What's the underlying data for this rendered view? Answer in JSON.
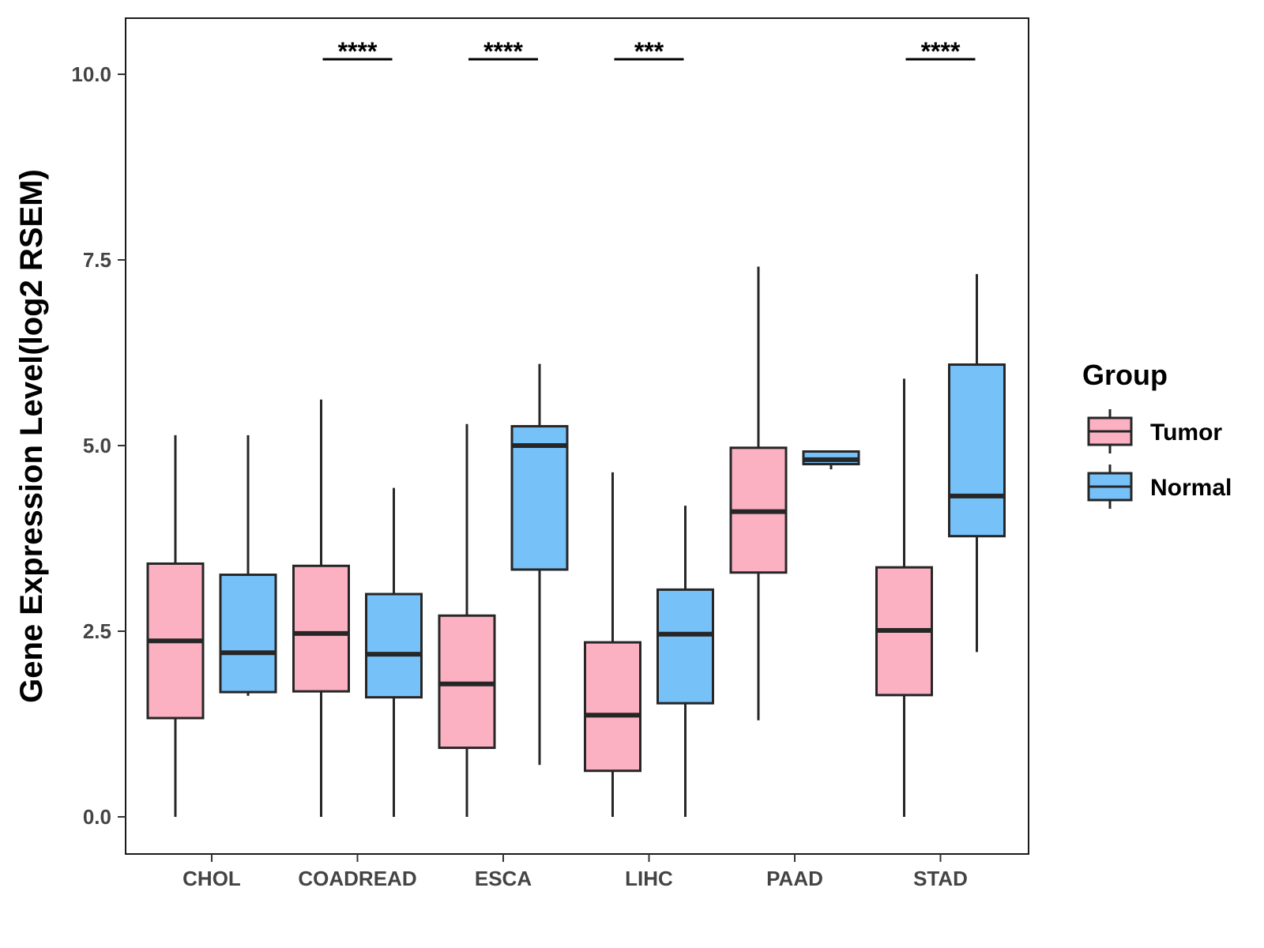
{
  "chart_data": {
    "type": "boxplot",
    "title": "",
    "xlabel": "",
    "ylabel": "Gene Expression Level(log2 RSEM)",
    "ylim": [
      -0.5,
      10.8
    ],
    "yticks": [
      0.0,
      2.5,
      5.0,
      7.5,
      10.0
    ],
    "ytick_labels": [
      "0.0",
      "2.5",
      "5.0",
      "7.5",
      "10.0"
    ],
    "grid": false,
    "legend": {
      "title": "Group",
      "position": "right",
      "entries": [
        {
          "name": "Tumor",
          "color": "#FBB1C2"
        },
        {
          "name": "Normal",
          "color": "#76C1F8"
        }
      ]
    },
    "categories": [
      "CHOL",
      "COADREAD",
      "ESCA",
      "LIHC",
      "PAAD",
      "STAD"
    ],
    "series": [
      {
        "name": "Tumor",
        "color": "#FBB1C2",
        "boxes": [
          {
            "whisker_low": 0.0,
            "q1": 1.33,
            "median": 2.37,
            "q3": 3.41,
            "whisker_high": 5.14
          },
          {
            "whisker_low": 0.0,
            "q1": 1.69,
            "median": 2.47,
            "q3": 3.38,
            "whisker_high": 5.62
          },
          {
            "whisker_low": 0.0,
            "q1": 0.93,
            "median": 1.79,
            "q3": 2.71,
            "whisker_high": 5.29
          },
          {
            "whisker_low": 0.0,
            "q1": 0.62,
            "median": 1.37,
            "q3": 2.35,
            "whisker_high": 4.64
          },
          {
            "whisker_low": 1.3,
            "q1": 3.29,
            "median": 4.11,
            "q3": 4.97,
            "whisker_high": 7.41
          },
          {
            "whisker_low": 0.0,
            "q1": 1.64,
            "median": 2.51,
            "q3": 3.36,
            "whisker_high": 5.9
          }
        ]
      },
      {
        "name": "Normal",
        "color": "#76C1F8",
        "boxes": [
          {
            "whisker_low": 1.63,
            "q1": 1.68,
            "median": 2.21,
            "q3": 3.26,
            "whisker_high": 5.14
          },
          {
            "whisker_low": 0.0,
            "q1": 1.61,
            "median": 2.19,
            "q3": 3.0,
            "whisker_high": 4.43
          },
          {
            "whisker_low": 0.7,
            "q1": 3.33,
            "median": 5.0,
            "q3": 5.26,
            "whisker_high": 6.1
          },
          {
            "whisker_low": 0.0,
            "q1": 1.53,
            "median": 2.46,
            "q3": 3.06,
            "whisker_high": 4.19
          },
          {
            "whisker_low": 4.68,
            "q1": 4.75,
            "median": 4.81,
            "q3": 4.92,
            "whisker_high": 4.92
          },
          {
            "whisker_low": 2.22,
            "q1": 3.78,
            "median": 4.32,
            "q3": 6.09,
            "whisker_high": 7.31
          }
        ]
      }
    ],
    "significance": [
      {
        "category": "CHOL",
        "label": ""
      },
      {
        "category": "COADREAD",
        "label": "****"
      },
      {
        "category": "ESCA",
        "label": "****"
      },
      {
        "category": "LIHC",
        "label": "***"
      },
      {
        "category": "PAAD",
        "label": ""
      },
      {
        "category": "STAD",
        "label": "****"
      }
    ]
  }
}
